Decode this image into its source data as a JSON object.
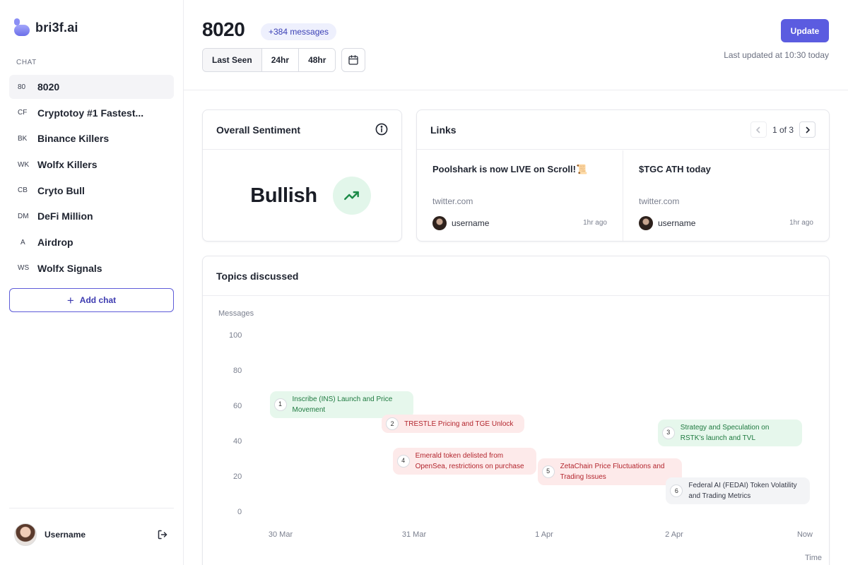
{
  "sidebar": {
    "brand": "bri3f.ai",
    "section_label": "CHAT",
    "chats": [
      {
        "abbr": "80",
        "name": "8020",
        "active": true
      },
      {
        "abbr": "CF",
        "name": "Cryptotoy #1 Fastest..."
      },
      {
        "abbr": "BK",
        "name": "Binance Killers"
      },
      {
        "abbr": "WK",
        "name": "Wolfx Killers"
      },
      {
        "abbr": "CB",
        "name": "Cryto Bull"
      },
      {
        "abbr": "DM",
        "name": "DeFi Million"
      },
      {
        "abbr": "A",
        "name": "Airdrop"
      },
      {
        "abbr": "WS",
        "name": "Wolfx Signals"
      }
    ],
    "add_chat_label": "Add chat",
    "user": {
      "name": "Username"
    }
  },
  "header": {
    "title": "8020",
    "badge": "+384 messages",
    "filters": [
      "Last Seen",
      "24hr",
      "48hr"
    ],
    "active_filter": "Last Seen",
    "update_label": "Update",
    "last_updated": "Last updated at 10:30 today"
  },
  "sentiment": {
    "title": "Overall Sentiment",
    "value": "Bullish",
    "trend": "up"
  },
  "links": {
    "title": "Links",
    "pager": "1 of 3",
    "items": [
      {
        "title": "Poolshark is now LIVE on Scroll!📜",
        "domain": "twitter.com",
        "user": "username",
        "time": "1hr ago"
      },
      {
        "title": "$TGC ATH today",
        "domain": "twitter.com",
        "user": "username",
        "time": "1hr ago"
      }
    ]
  },
  "topics": {
    "title": "Topics discussed",
    "ylabel": "Messages",
    "xlabel": "Time",
    "yticks": [
      "100",
      "80",
      "60",
      "40",
      "20",
      "0"
    ],
    "xticks": [
      "30 Mar",
      "31 Mar",
      "1 Apr",
      "2 Apr",
      "Now"
    ]
  },
  "chart_data": {
    "type": "scatter",
    "title": "Topics discussed",
    "xlabel": "Time",
    "ylabel": "Messages",
    "ylim": [
      0,
      100
    ],
    "x_ticks": [
      "30 Mar",
      "31 Mar",
      "1 Apr",
      "2 Apr",
      "Now"
    ],
    "y_ticks": [
      0,
      20,
      40,
      60,
      80,
      100
    ],
    "points": [
      {
        "id": 1,
        "label": "Inscribe (INS) Launch and Price Movement",
        "x": "29 Mar 22:00",
        "y": 61,
        "sentiment": "positive"
      },
      {
        "id": 2,
        "label": "TRESTLE Pricing and TGE Unlock",
        "x": "30 Mar 18:30",
        "y": 50,
        "sentiment": "negative"
      },
      {
        "id": 3,
        "label": "Strategy and Speculation on RSTK's launch and TVL",
        "x": "1 Apr 21:00",
        "y": 45,
        "sentiment": "positive"
      },
      {
        "id": 4,
        "label": "Emerald token delisted from OpenSea, restrictions on purchase",
        "x": "30 Mar 20:30",
        "y": 29,
        "sentiment": "negative"
      },
      {
        "id": 5,
        "label": "ZetaChain Price Fluctuations and Trading Issues",
        "x": "31 Mar 23:00",
        "y": 23,
        "sentiment": "negative"
      },
      {
        "id": 6,
        "label": "Federal AI (FEDAI) Token Volatility and Trading Metrics",
        "x": "1 Apr 22:30",
        "y": 12,
        "sentiment": "neutral"
      }
    ]
  }
}
